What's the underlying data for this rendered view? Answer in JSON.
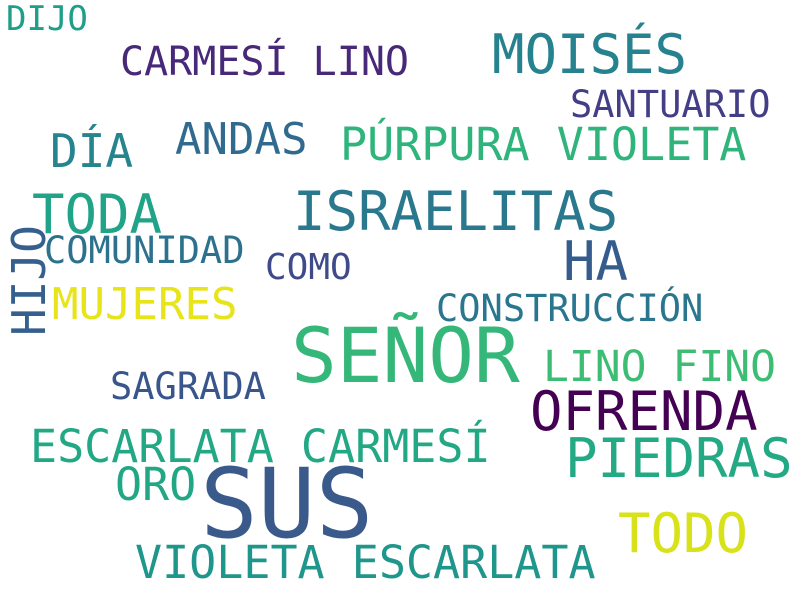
{
  "words": {
    "dijo": {
      "text": "DIJO",
      "color": "#1f9e89"
    },
    "carmesi_lino": {
      "text": "CARMESÍ LINO",
      "color": "#482878"
    },
    "moises": {
      "text": "MOISÉS",
      "color": "#26828e"
    },
    "santuario": {
      "text": "SANTUARIO",
      "color": "#433e85"
    },
    "dia": {
      "text": "DÍA",
      "color": "#25848e"
    },
    "andas": {
      "text": "ANDAS",
      "color": "#306a8e"
    },
    "purpura_violeta": {
      "text": "PÚRPURA VIOLETA",
      "color": "#2fb47c"
    },
    "toda": {
      "text": "TODA",
      "color": "#20a386"
    },
    "israelitas": {
      "text": "ISRAELITAS",
      "color": "#2a788e"
    },
    "hijo": {
      "text": "HIJO",
      "color": "#355f8d"
    },
    "comunidad": {
      "text": "COMUNIDAD",
      "color": "#2c728e"
    },
    "ha": {
      "text": "HA",
      "color": "#365c8d"
    },
    "como": {
      "text": "COMO",
      "color": "#3e4a89"
    },
    "mujeres": {
      "text": "MUJERES",
      "color": "#e7e419"
    },
    "construccion": {
      "text": "CONSTRUCCIÓN",
      "color": "#2a768e"
    },
    "senor": {
      "text": "SEÑOR",
      "color": "#35b779"
    },
    "lino_fino": {
      "text": "LINO FINO",
      "color": "#3dbc74"
    },
    "sagrada": {
      "text": "SAGRADA",
      "color": "#39568c"
    },
    "ofrenda": {
      "text": "OFRENDA",
      "color": "#440154"
    },
    "escarlata_carmesi": {
      "text": "ESCARLATA CARMESÍ",
      "color": "#22a884"
    },
    "piedras": {
      "text": "PIEDRAS",
      "color": "#23a983"
    },
    "oro": {
      "text": "ORO",
      "color": "#22a785"
    },
    "sus": {
      "text": "SUS",
      "color": "#3b5a8c"
    },
    "todo": {
      "text": "TODO",
      "color": "#d8e219"
    },
    "violeta_escarlata": {
      "text": "VIOLETA ESCARLATA",
      "color": "#1f968b"
    }
  }
}
